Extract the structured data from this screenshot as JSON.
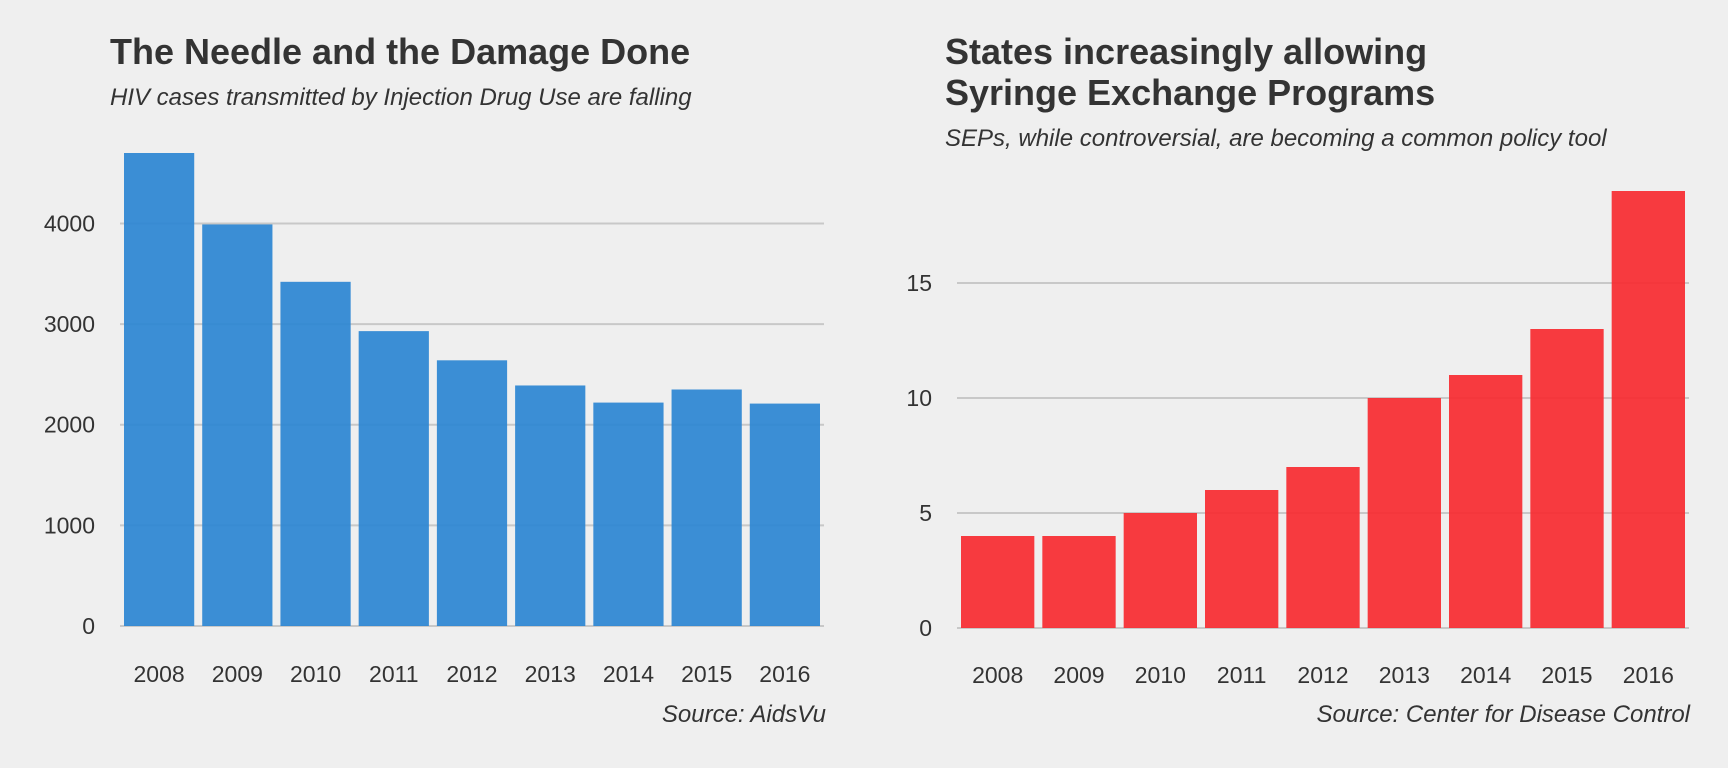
{
  "chart_data": [
    {
      "type": "bar",
      "title": "The Needle and the Damage Done",
      "subtitle": "HIV cases transmitted by Injection Drug Use are falling",
      "source": "Source: AidsVu",
      "categories": [
        "2008",
        "2009",
        "2010",
        "2011",
        "2012",
        "2013",
        "2014",
        "2015",
        "2016"
      ],
      "values": [
        4700,
        3990,
        3420,
        2930,
        2640,
        2390,
        2220,
        2350,
        2210
      ],
      "yticks": [
        0,
        1000,
        2000,
        3000,
        4000
      ],
      "ylim": [
        0,
        4700
      ],
      "grid": true,
      "color": "#2b86d2"
    },
    {
      "type": "bar",
      "title": "States increasingly allowing\nSyringe Exchange Programs",
      "subtitle": "SEPs, while controversial, are becoming a common policy tool",
      "source": "Source: Center for Disease Control",
      "categories": [
        "2008",
        "2009",
        "2010",
        "2011",
        "2012",
        "2013",
        "2014",
        "2015",
        "2016"
      ],
      "values": [
        4,
        4,
        5,
        6,
        7,
        10,
        11,
        13,
        19
      ],
      "yticks": [
        0,
        5,
        10,
        15
      ],
      "ylim": [
        0,
        19
      ],
      "grid": true,
      "color": "#f72a30"
    }
  ]
}
